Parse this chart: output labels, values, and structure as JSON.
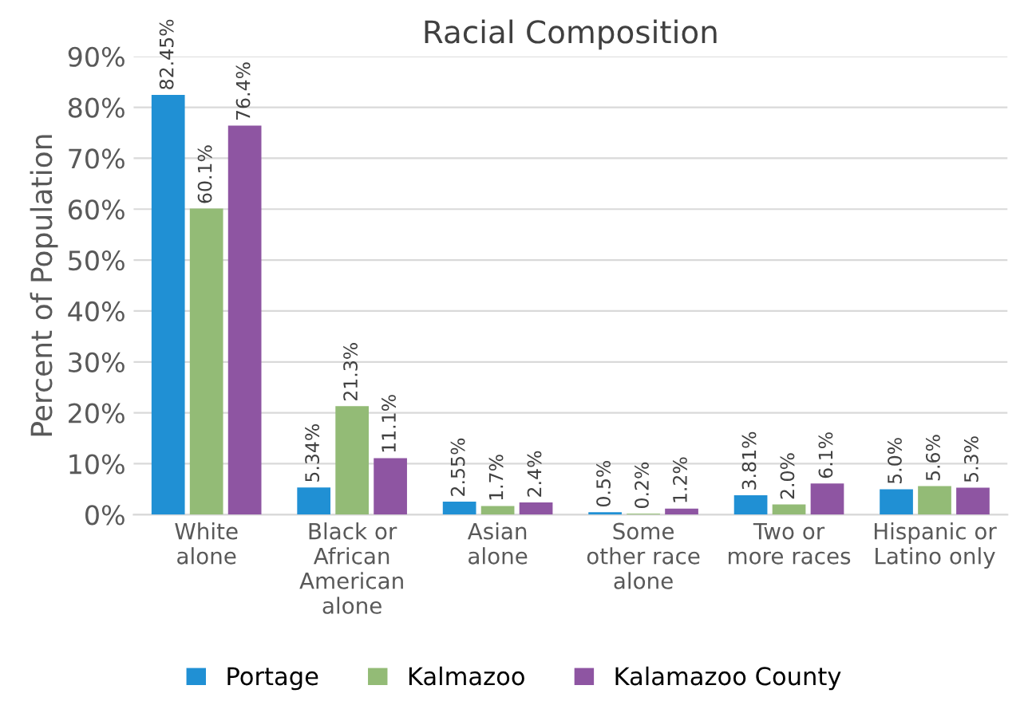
{
  "chart_data": {
    "type": "bar",
    "title": "Racial Composition",
    "ylabel": "Percent of Population",
    "categories": [
      "White\nalone",
      "Black or\nAfrican\nAmerican\nalone",
      "Asian\nalone",
      "Some\nother race\nalone",
      "Two or\nmore races",
      "Hispanic or\nLatino only"
    ],
    "series": [
      {
        "name": "Portage",
        "color": "#2090d4",
        "values": [
          82.45,
          5.34,
          2.55,
          0.5,
          3.81,
          5.0
        ],
        "value_labels": [
          "82.45%",
          "5.34%",
          "2.55%",
          "0.5%",
          "3.81%",
          "5.0%"
        ]
      },
      {
        "name": "Kalmazoo",
        "color": "#93bb76",
        "values": [
          60.1,
          21.3,
          1.7,
          0.2,
          2.0,
          5.6
        ],
        "value_labels": [
          "60.1%",
          "21.3%",
          "1.7%",
          "0.2%",
          "2.0%",
          "5.6%"
        ]
      },
      {
        "name": "Kalamazoo County",
        "color": "#8e55a2",
        "values": [
          76.4,
          11.1,
          2.4,
          1.2,
          6.1,
          5.3
        ],
        "value_labels": [
          "76.4%",
          "11.1%",
          "2.4%",
          "1.2%",
          "6.1%",
          "5.3%"
        ]
      }
    ],
    "ylim": [
      0,
      90
    ],
    "yticks": [
      {
        "value": 0,
        "label": "0%"
      },
      {
        "value": 10,
        "label": "10%"
      },
      {
        "value": 20,
        "label": "20%"
      },
      {
        "value": 30,
        "label": "30%"
      },
      {
        "value": 40,
        "label": "40%"
      },
      {
        "value": 50,
        "label": "50%"
      },
      {
        "value": 60,
        "label": "60%"
      },
      {
        "value": 70,
        "label": "70%"
      },
      {
        "value": 80,
        "label": "80%"
      },
      {
        "value": 90,
        "label": "90%"
      }
    ],
    "grid": "y",
    "legend": "bottom"
  }
}
